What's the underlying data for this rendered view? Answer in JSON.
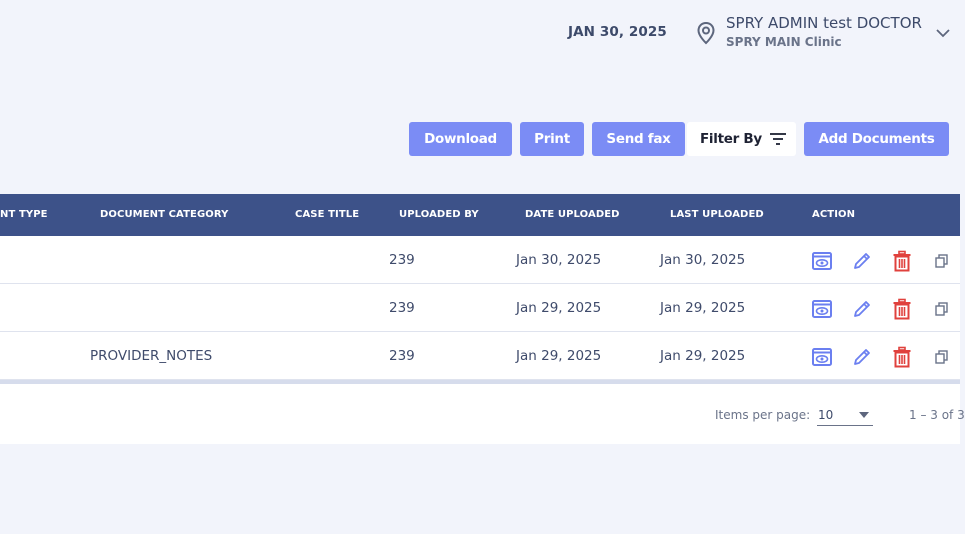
{
  "header": {
    "date": "JAN 30, 2025",
    "user_name": "SPRY ADMIN test DOCTOR",
    "clinic_name": "SPRY MAIN Clinic",
    "location_icon": "map-pin-icon",
    "expand_icon": "chevron-down-icon"
  },
  "toolbar": {
    "download_label": "Download",
    "print_label": "Print",
    "send_fax_label": "Send fax",
    "filter_label": "Filter By",
    "filter_icon": "filter-lines-icon",
    "add_documents_label": "Add Documents"
  },
  "table": {
    "columns": [
      "NT TYPE",
      "DOCUMENT CATEGORY",
      "CASE TITLE",
      "UPLOADED BY",
      "DATE UPLOADED",
      "LAST UPLOADED",
      "ACTION"
    ],
    "rows": [
      {
        "document_category": "",
        "case_title": "",
        "uploaded_by": "239",
        "date_uploaded": "Jan 30, 2025",
        "last_uploaded": "Jan 30, 2025"
      },
      {
        "document_category": "",
        "case_title": "",
        "uploaded_by": "239",
        "date_uploaded": "Jan 29, 2025",
        "last_uploaded": "Jan 29, 2025"
      },
      {
        "document_category": "PROVIDER_NOTES",
        "case_title": "",
        "uploaded_by": "239",
        "date_uploaded": "Jan 29, 2025",
        "last_uploaded": "Jan 29, 2025"
      }
    ],
    "action_icons": [
      "view-icon",
      "edit-pencil-icon",
      "delete-trash-icon",
      "copy-icon"
    ]
  },
  "pagination": {
    "items_per_page_label": "Items per page:",
    "items_per_page_value": "10",
    "range_label": "1 – 3 of 3"
  },
  "colors": {
    "button_bg": "#7b8cf5",
    "table_header_bg": "#3d5289",
    "action_blue": "#6b7ff0",
    "action_red": "#e0413d",
    "page_bg": "#f2f4fb"
  }
}
